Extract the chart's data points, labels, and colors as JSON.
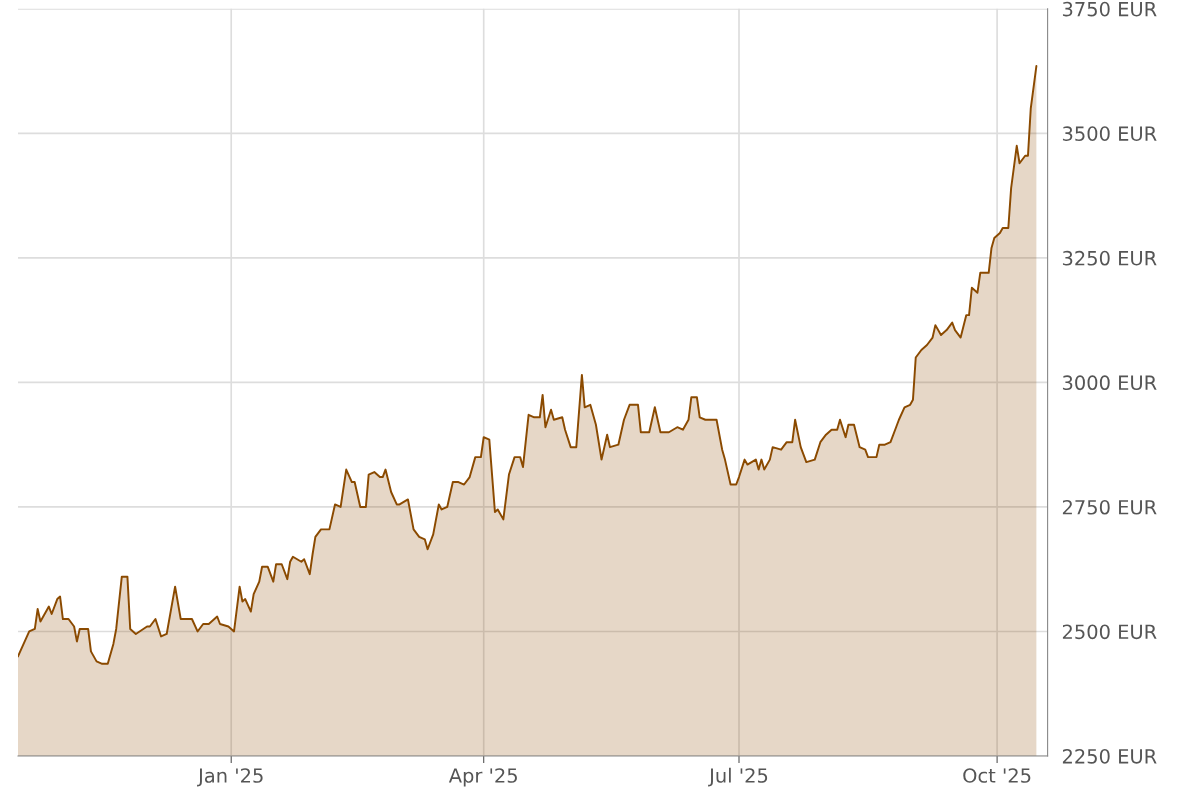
{
  "chart_data": {
    "type": "area",
    "x": [
      "2024-10-17",
      "2024-10-21",
      "2024-10-23",
      "2024-10-24",
      "2024-10-25",
      "2024-10-28",
      "2024-10-29",
      "2024-10-31",
      "2024-11-01",
      "2024-11-02",
      "2024-11-04",
      "2024-11-06",
      "2024-11-07",
      "2024-11-08",
      "2024-11-11",
      "2024-11-12",
      "2024-11-14",
      "2024-11-16",
      "2024-11-18",
      "2024-11-20",
      "2024-11-21",
      "2024-11-23",
      "2024-11-25",
      "2024-11-26",
      "2024-11-28",
      "2024-12-02",
      "2024-12-03",
      "2024-12-05",
      "2024-12-07",
      "2024-12-09",
      "2024-12-12",
      "2024-12-14",
      "2024-12-18",
      "2024-12-20",
      "2024-12-22",
      "2024-12-24",
      "2024-12-27",
      "2024-12-28",
      "2024-12-31",
      "2025-01-02",
      "2025-01-04",
      "2025-01-05",
      "2025-01-06",
      "2025-01-08",
      "2025-01-09",
      "2025-01-11",
      "2025-01-12",
      "2025-01-14",
      "2025-01-16",
      "2025-01-17",
      "2025-01-19",
      "2025-01-21",
      "2025-01-22",
      "2025-01-23",
      "2025-01-26",
      "2025-01-27",
      "2025-01-29",
      "2025-01-30",
      "2025-01-31",
      "2025-02-02",
      "2025-02-05",
      "2025-02-07",
      "2025-02-09",
      "2025-02-11",
      "2025-02-13",
      "2025-02-14",
      "2025-02-16",
      "2025-02-18",
      "2025-02-19",
      "2025-02-21",
      "2025-02-23",
      "2025-02-24",
      "2025-02-25",
      "2025-02-27",
      "2025-03-01",
      "2025-03-02",
      "2025-03-05",
      "2025-03-07",
      "2025-03-09",
      "2025-03-11",
      "2025-03-12",
      "2025-03-14",
      "2025-03-16",
      "2025-03-17",
      "2025-03-19",
      "2025-03-21",
      "2025-03-23",
      "2025-03-25",
      "2025-03-27",
      "2025-03-29",
      "2025-03-31",
      "2025-04-01",
      "2025-04-03",
      "2025-04-05",
      "2025-04-06",
      "2025-04-08",
      "2025-04-10",
      "2025-04-12",
      "2025-04-14",
      "2025-04-15",
      "2025-04-17",
      "2025-04-19",
      "2025-04-21",
      "2025-04-22",
      "2025-04-23",
      "2025-04-25",
      "2025-04-26",
      "2025-04-29",
      "2025-04-30",
      "2025-05-02",
      "2025-05-04",
      "2025-05-06",
      "2025-05-07",
      "2025-05-09",
      "2025-05-11",
      "2025-05-13",
      "2025-05-15",
      "2025-05-16",
      "2025-05-19",
      "2025-05-21",
      "2025-05-23",
      "2025-05-26",
      "2025-05-27",
      "2025-05-30",
      "2025-06-01",
      "2025-06-03",
      "2025-06-06",
      "2025-06-09",
      "2025-06-11",
      "2025-06-13",
      "2025-06-14",
      "2025-06-16",
      "2025-06-17",
      "2025-06-19",
      "2025-06-21",
      "2025-06-23",
      "2025-06-25",
      "2025-06-26",
      "2025-06-28",
      "2025-06-30",
      "2025-07-01",
      "2025-07-03",
      "2025-07-04",
      "2025-07-07",
      "2025-07-08",
      "2025-07-09",
      "2025-07-10",
      "2025-07-12",
      "2025-07-13",
      "2025-07-16",
      "2025-07-18",
      "2025-07-20",
      "2025-07-21",
      "2025-07-23",
      "2025-07-25",
      "2025-07-28",
      "2025-07-30",
      "2025-08-01",
      "2025-08-03",
      "2025-08-05",
      "2025-08-06",
      "2025-08-08",
      "2025-08-09",
      "2025-08-11",
      "2025-08-13",
      "2025-08-15",
      "2025-08-16",
      "2025-08-19",
      "2025-08-20",
      "2025-08-22",
      "2025-08-24",
      "2025-08-26",
      "2025-08-27",
      "2025-08-29",
      "2025-08-31",
      "2025-09-01",
      "2025-09-02",
      "2025-09-04",
      "2025-09-06",
      "2025-09-08",
      "2025-09-09",
      "2025-09-11",
      "2025-09-13",
      "2025-09-15",
      "2025-09-16",
      "2025-09-18",
      "2025-09-20",
      "2025-09-21",
      "2025-09-22",
      "2025-09-24",
      "2025-09-25",
      "2025-09-28",
      "2025-09-29",
      "2025-09-30",
      "2025-10-02",
      "2025-10-03",
      "2025-10-05",
      "2025-10-06",
      "2025-10-08",
      "2025-10-09",
      "2025-10-11",
      "2025-10-12",
      "2025-10-13",
      "2025-10-15"
    ],
    "series": [
      {
        "color": "#8b4a00",
        "values": [
          2450,
          2500,
          2505,
          2545,
          2520,
          2550,
          2535,
          2565,
          2570,
          2525,
          2525,
          2510,
          2480,
          2505,
          2505,
          2460,
          2440,
          2435,
          2435,
          2475,
          2505,
          2610,
          2610,
          2505,
          2495,
          2510,
          2510,
          2525,
          2490,
          2495,
          2590,
          2525,
          2525,
          2500,
          2515,
          2515,
          2530,
          2515,
          2510,
          2500,
          2590,
          2560,
          2565,
          2540,
          2575,
          2600,
          2630,
          2630,
          2600,
          2635,
          2635,
          2605,
          2640,
          2650,
          2640,
          2645,
          2615,
          2655,
          2690,
          2705,
          2705,
          2755,
          2750,
          2825,
          2800,
          2800,
          2750,
          2750,
          2815,
          2820,
          2810,
          2810,
          2825,
          2780,
          2755,
          2755,
          2765,
          2705,
          2690,
          2685,
          2665,
          2695,
          2755,
          2745,
          2750,
          2800,
          2800,
          2795,
          2810,
          2850,
          2850,
          2890,
          2885,
          2740,
          2745,
          2725,
          2815,
          2850,
          2850,
          2830,
          2935,
          2930,
          2930,
          2975,
          2910,
          2945,
          2925,
          2930,
          2905,
          2870,
          2870,
          3015,
          2950,
          2955,
          2915,
          2845,
          2895,
          2870,
          2875,
          2925,
          2955,
          2955,
          2900,
          2900,
          2950,
          2900,
          2900,
          2910,
          2905,
          2925,
          2970,
          2970,
          2930,
          2925,
          2925,
          2925,
          2865,
          2845,
          2795,
          2795,
          2810,
          2845,
          2835,
          2845,
          2825,
          2845,
          2825,
          2845,
          2870,
          2865,
          2880,
          2880,
          2925,
          2870,
          2840,
          2845,
          2880,
          2895,
          2905,
          2905,
          2925,
          2890,
          2915,
          2915,
          2870,
          2865,
          2850,
          2850,
          2875,
          2875,
          2880,
          2910,
          2925,
          2950,
          2955,
          2965,
          3050,
          3065,
          3075,
          3090,
          3115,
          3095,
          3105,
          3120,
          3105,
          3090,
          3135,
          3135,
          3190,
          3180,
          3220,
          3220,
          3270,
          3290,
          3300,
          3310,
          3310,
          3390,
          3475,
          3440,
          3455,
          3455,
          3550,
          3635
        ]
      }
    ],
    "xlim": [
      "2024-10-17",
      "2025-10-19"
    ],
    "xticks": [
      {
        "value": "2025-01-01",
        "label": "Jan '25"
      },
      {
        "value": "2025-04-01",
        "label": "Apr '25"
      },
      {
        "value": "2025-07-01",
        "label": "Jul '25"
      },
      {
        "value": "2025-10-01",
        "label": "Oct '25"
      }
    ],
    "ylim": [
      2250,
      3750
    ],
    "yticks": [
      {
        "value": 2250,
        "label": "2250 EUR"
      },
      {
        "value": 2500,
        "label": "2500 EUR"
      },
      {
        "value": 2750,
        "label": "2750 EUR"
      },
      {
        "value": 3000,
        "label": "3000 EUR"
      },
      {
        "value": 3250,
        "label": "3250 EUR"
      },
      {
        "value": 3500,
        "label": "3500 EUR"
      },
      {
        "value": 3750,
        "label": "3750 EUR"
      }
    ],
    "grid": true,
    "legend": false
  }
}
